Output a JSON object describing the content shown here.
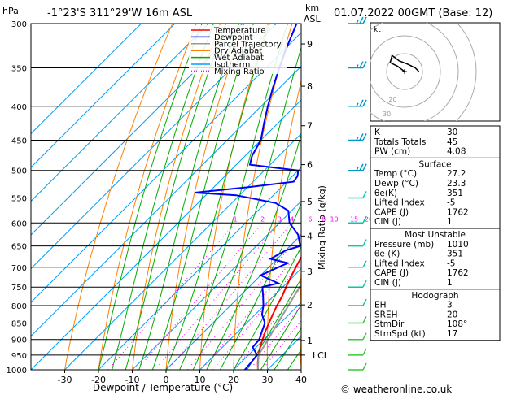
{
  "header": {
    "hpa_label": "hPa",
    "location": "-1°23'S  311°29'W  16m  ASL",
    "km_label": "km",
    "asl_label": "ASL",
    "datetime": "01.07.2022  00GMT  (Base: 12)"
  },
  "footer": {
    "credit": "© weatheronline.co.uk"
  },
  "legend": [
    {
      "label": "Temperature",
      "color": "#ff0000",
      "style": "solid"
    },
    {
      "label": "Dewpoint",
      "color": "#0000ff",
      "style": "solid"
    },
    {
      "label": "Parcel Trajectory",
      "color": "#999999",
      "style": "solid"
    },
    {
      "label": "Dry Adiabat",
      "color": "#ff8000",
      "style": "solid"
    },
    {
      "label": "Wet Adiabat",
      "color": "#00aa00",
      "style": "solid"
    },
    {
      "label": "Isotherm",
      "color": "#00a0ff",
      "style": "solid"
    },
    {
      "label": "Mixing Ratio",
      "color": "#ff00ff",
      "style": "dotted"
    }
  ],
  "chart_data": {
    "type": "line",
    "subtype": "skew-T log-P sounding",
    "xlabel": "Dewpoint / Temperature (°C)",
    "ylabel_left": "hPa",
    "ylabel_right": "Mixing Ratio (g/kg)",
    "x_ticks": [
      -30,
      -20,
      -10,
      0,
      10,
      20,
      30,
      40
    ],
    "pressure_ticks": [
      300,
      350,
      400,
      450,
      500,
      550,
      600,
      650,
      700,
      750,
      800,
      850,
      900,
      950,
      1000
    ],
    "pressure_range": [
      300,
      1000
    ],
    "temp_range_at_1000hPa": [
      -40,
      40
    ],
    "km_ticks": [
      {
        "km": "1",
        "p": 903
      },
      {
        "km": "2",
        "p": 798
      },
      {
        "km": "3",
        "p": 710
      },
      {
        "km": "4",
        "p": 628
      },
      {
        "km": "5",
        "p": 557
      },
      {
        "km": "6",
        "p": 490
      },
      {
        "km": "7",
        "p": 428
      },
      {
        "km": "8",
        "p": 373
      },
      {
        "km": "9",
        "p": 322
      }
    ],
    "lcl_label": "LCL",
    "lcl_pressure": 950,
    "mixing_ratio_labels": [
      "1",
      "2",
      "3",
      "4",
      "6",
      "8",
      "10",
      "15",
      "20",
      "25"
    ],
    "mixing_ratio_values": [
      1,
      2,
      3,
      4,
      6,
      8,
      10,
      15,
      20,
      25
    ],
    "series": [
      {
        "name": "Temperature",
        "color": "#ff0000",
        "points": [
          [
            1000,
            27.2
          ],
          [
            975,
            25.0
          ],
          [
            950,
            23.0
          ],
          [
            925,
            21.2
          ],
          [
            900,
            19.6
          ],
          [
            875,
            18.0
          ],
          [
            850,
            16.6
          ],
          [
            825,
            15.2
          ],
          [
            800,
            13.8
          ],
          [
            775,
            12.6
          ],
          [
            750,
            11.0
          ],
          [
            725,
            9.5
          ],
          [
            700,
            8.0
          ],
          [
            675,
            6.6
          ],
          [
            650,
            5.0
          ],
          [
            625,
            3.6
          ],
          [
            600,
            2.0
          ],
          [
            575,
            0.2
          ],
          [
            550,
            -1.6
          ],
          [
            525,
            -3.2
          ],
          [
            500,
            -5.8
          ],
          [
            475,
            -8.0
          ],
          [
            450,
            -10.2
          ],
          [
            425,
            -12.8
          ],
          [
            400,
            -16.0
          ],
          [
            375,
            -19.8
          ],
          [
            350,
            -23.6
          ],
          [
            325,
            -28.2
          ],
          [
            300,
            -32.8
          ]
        ]
      },
      {
        "name": "Dewpoint",
        "color": "#0000ff",
        "points": [
          [
            1000,
            23.3
          ],
          [
            975,
            23.0
          ],
          [
            950,
            22.6
          ],
          [
            925,
            19.0
          ],
          [
            900,
            18.6
          ],
          [
            875,
            17.0
          ],
          [
            850,
            15.4
          ],
          [
            825,
            12.0
          ],
          [
            800,
            9.8
          ],
          [
            775,
            7.0
          ],
          [
            750,
            4.0
          ],
          [
            740,
            7.5
          ],
          [
            720,
            0.0
          ],
          [
            700,
            2.8
          ],
          [
            690,
            4.4
          ],
          [
            680,
            -2.0
          ],
          [
            660,
            0.0
          ],
          [
            650,
            3.0
          ],
          [
            625,
            -1.0
          ],
          [
            600,
            -7.0
          ],
          [
            575,
            -11.0
          ],
          [
            560,
            -17.0
          ],
          [
            545,
            -31.0
          ],
          [
            540,
            -44.0
          ],
          [
            530,
            -30.0
          ],
          [
            520,
            -18.0
          ],
          [
            510,
            -18.5
          ],
          [
            500,
            -20.0
          ],
          [
            490,
            -36.0
          ],
          [
            475,
            -38.0
          ],
          [
            450,
            -40.0
          ],
          [
            425,
            -44.0
          ],
          [
            400,
            -48.0
          ],
          [
            375,
            -52.0
          ],
          [
            350,
            -56.0
          ],
          [
            325,
            -60.0
          ],
          [
            300,
            -64.0
          ]
        ]
      },
      {
        "name": "Parcel Trajectory",
        "color": "#999999",
        "points": [
          [
            1000,
            27.2
          ],
          [
            950,
            23.0
          ],
          [
            900,
            21.2
          ],
          [
            850,
            19.2
          ],
          [
            800,
            17.2
          ],
          [
            750,
            15.0
          ],
          [
            700,
            12.6
          ],
          [
            650,
            9.8
          ],
          [
            600,
            6.8
          ],
          [
            550,
            3.2
          ],
          [
            500,
            -0.6
          ],
          [
            450,
            -5.2
          ],
          [
            400,
            -10.6
          ],
          [
            350,
            -17.6
          ],
          [
            300,
            -26.2
          ]
        ]
      }
    ]
  },
  "hodograph": {
    "label": "kt",
    "ring_labels": [
      "20",
      "30",
      "40"
    ],
    "points_kt": [
      [
        0,
        0
      ],
      [
        -4,
        3
      ],
      [
        -8,
        5
      ],
      [
        -7,
        9
      ],
      [
        -3,
        6
      ],
      [
        2,
        4
      ],
      [
        6,
        2
      ],
      [
        8,
        0
      ]
    ]
  },
  "indices": {
    "top": [
      {
        "name": "K",
        "value": "30"
      },
      {
        "name": "Totals Totals",
        "value": "45"
      },
      {
        "name": "PW (cm)",
        "value": "4.08"
      }
    ],
    "surface": {
      "title": "Surface",
      "rows": [
        {
          "name": "Temp (°C)",
          "value": "27.2"
        },
        {
          "name": "Dewp (°C)",
          "value": "23.3"
        },
        {
          "name": "θe(K)",
          "value": "351"
        },
        {
          "name": "Lifted Index",
          "value": "-5"
        },
        {
          "name": "CAPE (J)",
          "value": "1762"
        },
        {
          "name": "CIN (J)",
          "value": "1"
        }
      ]
    },
    "unstable": {
      "title": "Most Unstable",
      "rows": [
        {
          "name": "Pressure (mb)",
          "value": "1010"
        },
        {
          "name": "θe (K)",
          "value": "351"
        },
        {
          "name": "Lifted Index",
          "value": "-5"
        },
        {
          "name": "CAPE (J)",
          "value": "1762"
        },
        {
          "name": "CIN (J)",
          "value": "1"
        }
      ]
    },
    "hodo": {
      "title": "Hodograph",
      "rows": [
        {
          "name": "EH",
          "value": "3"
        },
        {
          "name": "SREH",
          "value": "20"
        },
        {
          "name": "StmDir",
          "value": "108°"
        },
        {
          "name": "StmSpd (kt)",
          "value": "17"
        }
      ]
    }
  },
  "wind_barbs": [
    {
      "p": 300,
      "dir": 90,
      "kt": 15
    },
    {
      "p": 350,
      "dir": 95,
      "kt": 15
    },
    {
      "p": 400,
      "dir": 100,
      "kt": 15
    },
    {
      "p": 450,
      "dir": 100,
      "kt": 15
    },
    {
      "p": 500,
      "dir": 110,
      "kt": 15
    },
    {
      "p": 550,
      "dir": 120,
      "kt": 10
    },
    {
      "p": 600,
      "dir": 110,
      "kt": 10
    },
    {
      "p": 650,
      "dir": 100,
      "kt": 10
    },
    {
      "p": 700,
      "dir": 95,
      "kt": 10
    },
    {
      "p": 750,
      "dir": 95,
      "kt": 10
    },
    {
      "p": 800,
      "dir": 100,
      "kt": 10
    },
    {
      "p": 850,
      "dir": 120,
      "kt": 10
    },
    {
      "p": 900,
      "dir": 130,
      "kt": 10
    },
    {
      "p": 950,
      "dir": 140,
      "kt": 10
    },
    {
      "p": 1000,
      "dir": 150,
      "kt": 10
    }
  ]
}
